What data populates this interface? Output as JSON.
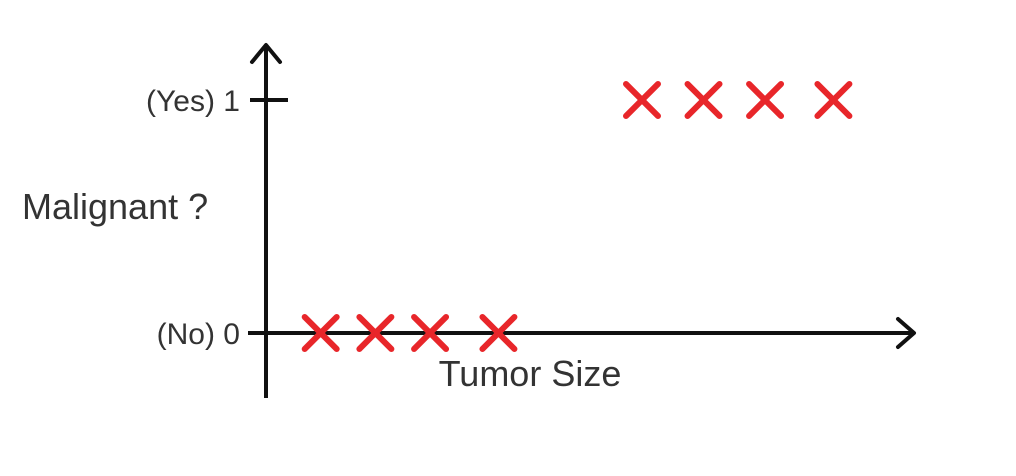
{
  "chart_data": {
    "type": "scatter",
    "xlabel": "Tumor Size",
    "ylabel": "Malignant ?",
    "y_ticks": [
      {
        "value": 0,
        "label": "(No) 0"
      },
      {
        "value": 1,
        "label": "(Yes) 1"
      }
    ],
    "marker": "x",
    "marker_color": "#e8262a",
    "axis_color": "#111111",
    "grid": false,
    "ylim": [
      0,
      1.2
    ],
    "xlim": [
      0,
      11
    ],
    "series": [
      {
        "points": [
          {
            "x": 0.8,
            "y": 0
          },
          {
            "x": 1.6,
            "y": 0
          },
          {
            "x": 2.4,
            "y": 0
          },
          {
            "x": 3.4,
            "y": 0
          },
          {
            "x": 5.5,
            "y": 1
          },
          {
            "x": 6.4,
            "y": 1
          },
          {
            "x": 7.3,
            "y": 1
          },
          {
            "x": 8.3,
            "y": 1
          }
        ]
      }
    ]
  }
}
